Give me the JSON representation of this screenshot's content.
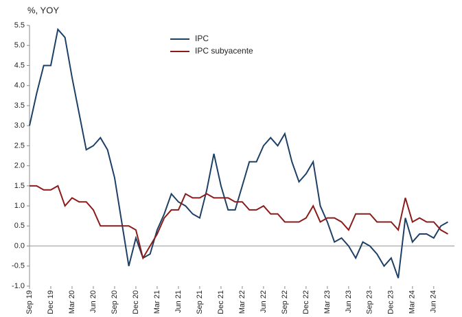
{
  "chart_data": {
    "type": "line",
    "y_label": "%, YOY",
    "categories": [
      "Sep 19",
      null,
      null,
      "Dec 19",
      null,
      null,
      "Mar 20",
      null,
      null,
      "Jun 20",
      null,
      null,
      "Sep 20",
      null,
      null,
      "Dec 20",
      null,
      null,
      "Mar 21",
      null,
      null,
      "Jun 21",
      null,
      null,
      "Sep 21",
      null,
      null,
      "Dec 21",
      null,
      null,
      "Mar 22",
      null,
      null,
      "Jun 22",
      null,
      null,
      "Sep 22",
      null,
      null,
      "Dec 22",
      null,
      null,
      "Mar 23",
      null,
      null,
      "Jun 23",
      null,
      null,
      "Sep 23",
      null,
      null,
      "Dec 23",
      null,
      null,
      "Mar 24",
      null,
      null,
      "Jun 24",
      null,
      null
    ],
    "series": [
      {
        "name": "IPC",
        "color": "#1c3f66",
        "values": [
          3.0,
          3.8,
          4.5,
          4.5,
          5.4,
          5.2,
          4.2,
          3.3,
          2.4,
          2.5,
          2.7,
          2.4,
          1.7,
          0.6,
          -0.5,
          0.2,
          -0.3,
          -0.2,
          0.4,
          0.8,
          1.3,
          1.1,
          1.0,
          0.8,
          0.7,
          1.4,
          2.3,
          1.5,
          0.9,
          0.9,
          1.5,
          2.1,
          2.1,
          2.5,
          2.7,
          2.5,
          2.8,
          2.1,
          1.6,
          1.8,
          2.1,
          1.0,
          0.6,
          0.1,
          0.2,
          0.0,
          -0.3,
          0.1,
          0.0,
          -0.2,
          -0.5,
          -0.3,
          -0.8,
          0.7,
          0.1,
          0.3,
          0.3,
          0.2,
          0.5,
          0.6
        ]
      },
      {
        "name": "IPC subyacente",
        "color": "#8b1a1a",
        "values": [
          1.5,
          1.5,
          1.4,
          1.4,
          1.5,
          1.0,
          1.2,
          1.1,
          1.1,
          0.9,
          0.5,
          0.5,
          0.5,
          0.5,
          0.5,
          0.4,
          -0.3,
          0.0,
          0.3,
          0.7,
          0.9,
          0.9,
          1.3,
          1.2,
          1.2,
          1.3,
          1.2,
          1.2,
          1.2,
          1.1,
          1.1,
          0.9,
          0.9,
          1.0,
          0.8,
          0.8,
          0.6,
          0.6,
          0.6,
          0.7,
          1.0,
          0.6,
          0.7,
          0.7,
          0.6,
          0.4,
          0.8,
          0.8,
          0.8,
          0.6,
          0.6,
          0.6,
          0.4,
          1.2,
          0.6,
          0.7,
          0.6,
          0.6,
          0.4,
          0.3
        ]
      }
    ],
    "ylim": [
      -1.0,
      5.5
    ],
    "yticks": [
      5.5,
      {
        "value": 5,
        "label": "5.0"
      },
      4.5,
      {
        "value": 4,
        "label": "4.0"
      },
      3.5,
      {
        "value": 3,
        "label": "3.0"
      },
      2.5,
      {
        "value": 2,
        "label": "2.0"
      },
      1.5,
      {
        "value": 1,
        "label": "1.0"
      },
      0.5,
      {
        "value": 0,
        "label": "0.0"
      },
      -0.5,
      {
        "value": -1,
        "label": "-1.0"
      }
    ],
    "grid": false,
    "legend": "top"
  }
}
